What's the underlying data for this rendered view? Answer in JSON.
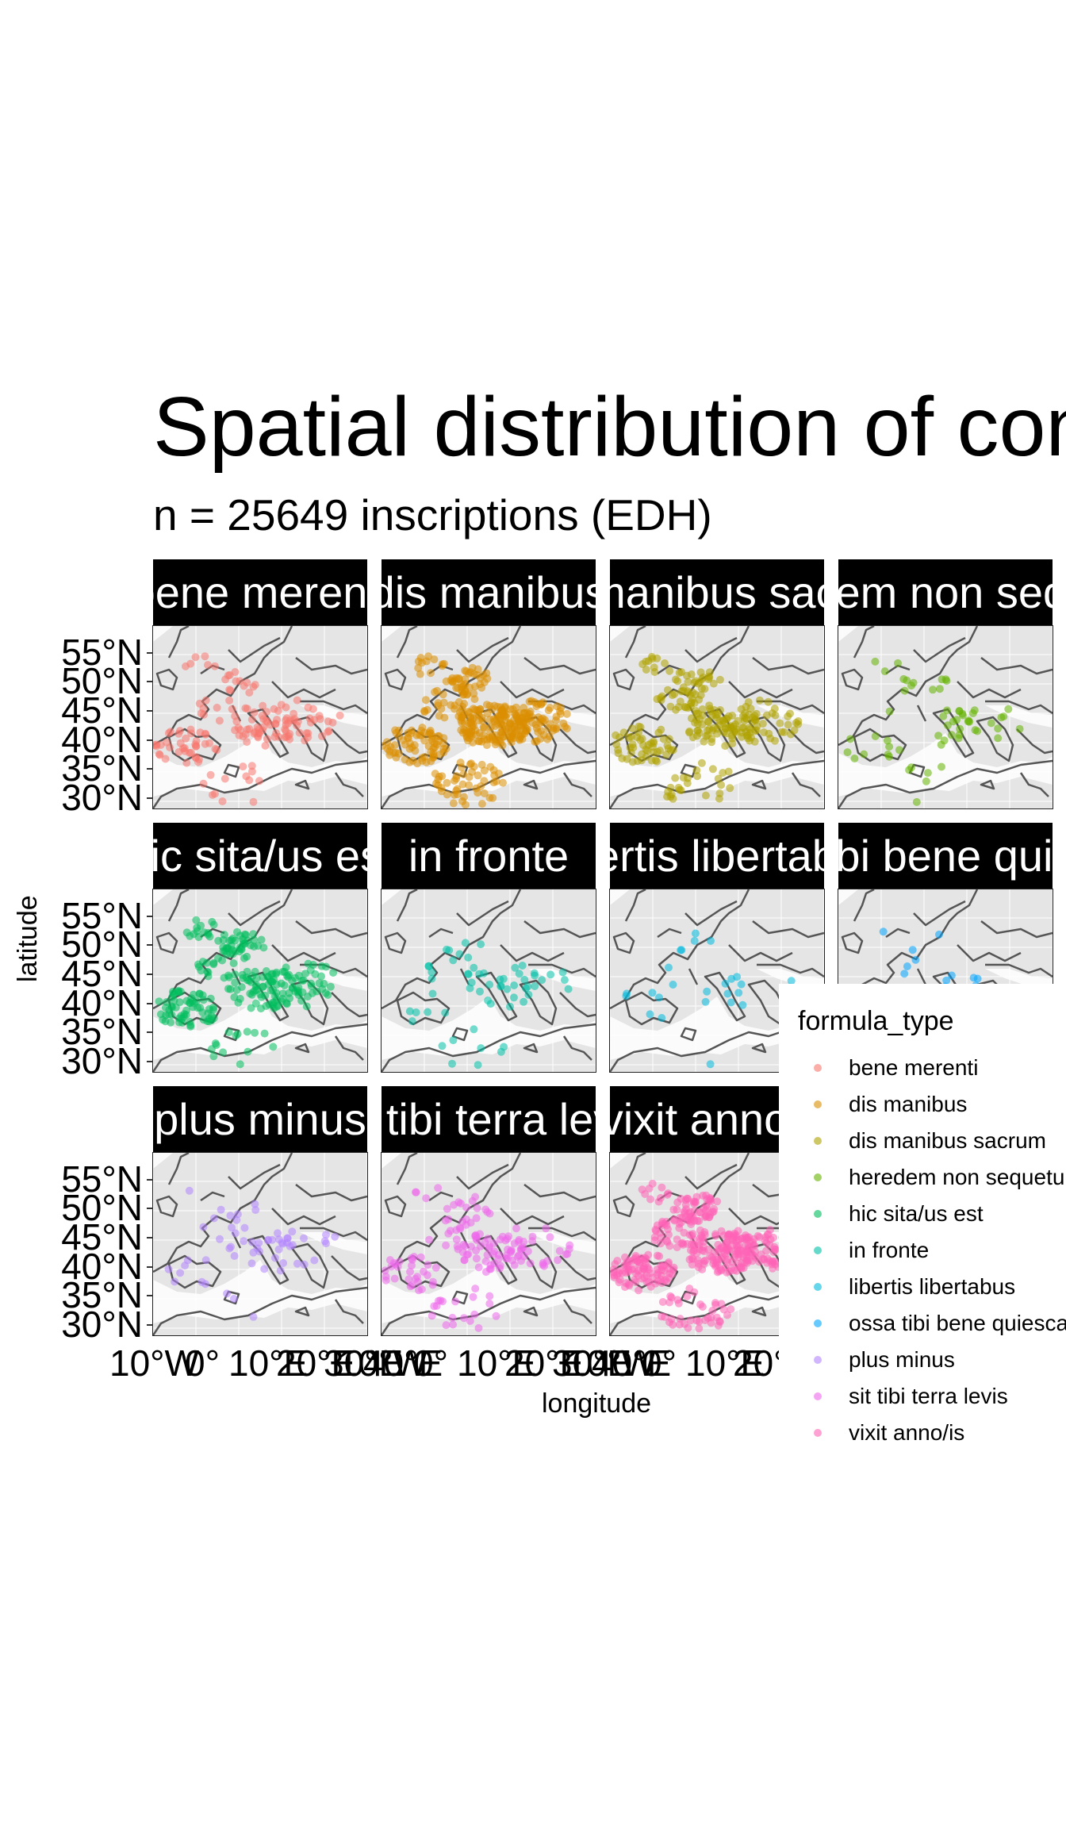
{
  "title": "Spatial distribution of common epitaph formulae",
  "subtitle": "n = 25649 inscriptions (EDH)",
  "axes": {
    "x_title": "longitude",
    "y_title": "latitude",
    "y_ticks": [
      "55°N",
      "50°N",
      "45°N",
      "40°N",
      "35°N",
      "30°N"
    ],
    "x_ticks": [
      "10°W",
      "0°",
      "10°E",
      "20°E",
      "30°E",
      "40°E"
    ]
  },
  "legend": {
    "title": "formula_type",
    "items": [
      {
        "label": "bene merenti",
        "color": "#F8766D"
      },
      {
        "label": "dis manibus",
        "color": "#DB8E00"
      },
      {
        "label": "dis manibus sacrum",
        "color": "#AEA200"
      },
      {
        "label": "heredem non sequetur",
        "color": "#64B200"
      },
      {
        "label": "hic sita/us est",
        "color": "#00BD5C"
      },
      {
        "label": "in fronte",
        "color": "#00C1A7"
      },
      {
        "label": "libertis libertabus",
        "color": "#00BADE"
      },
      {
        "label": "ossa tibi bene quiescant",
        "color": "#00A6FF"
      },
      {
        "label": "plus minus",
        "color": "#B385FF"
      },
      {
        "label": "sit tibi terra levis",
        "color": "#EF67EB"
      },
      {
        "label": "vixit anno/is",
        "color": "#FF63B6"
      }
    ]
  },
  "panels": [
    {
      "label": "bene merenti",
      "color": "#F8766D",
      "density": "medium"
    },
    {
      "label": "dis manibus",
      "color": "#DB8E00",
      "density": "very high"
    },
    {
      "label": "dis manibus sacrum",
      "color": "#AEA200",
      "density": "high"
    },
    {
      "label": "heredem non sequetur",
      "color": "#64B200",
      "density": "low"
    },
    {
      "label": "hic sita/us est",
      "color": "#00BD5C",
      "density": "high"
    },
    {
      "label": "in fronte",
      "color": "#00C1A7",
      "density": "low"
    },
    {
      "label": "libertis libertabus",
      "color": "#00BADE",
      "density": "very low"
    },
    {
      "label": "ossa tibi bene quiescant",
      "color": "#00A6FF",
      "density": "very low"
    },
    {
      "label": "plus minus",
      "color": "#B385FF",
      "density": "low"
    },
    {
      "label": "sit tibi terra levis",
      "color": "#EF67EB",
      "density": "medium"
    },
    {
      "label": "vixit anno/is",
      "color": "#FF63B6",
      "density": "very high"
    }
  ]
}
